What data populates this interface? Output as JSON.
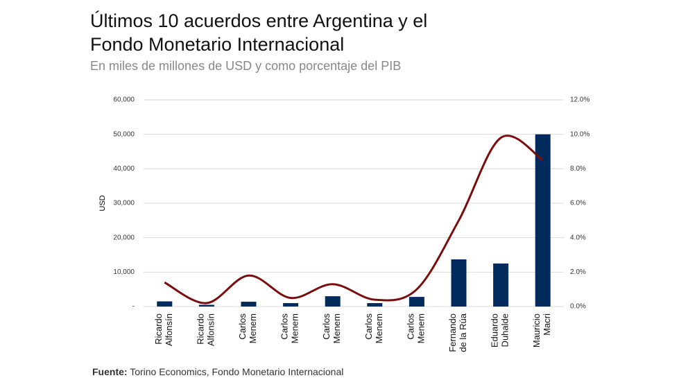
{
  "chart_data": {
    "type": "bar-line",
    "title": "Últimos 10 acuerdos entre Argentina y el Fondo Monetario Internacional",
    "subtitle": "En miles de millones de USD y como porcentaje del PIB",
    "y_label": "USD",
    "source_label": "Fuente:",
    "source": "Torino Economics, Fondo Monetario Internacional",
    "categories": [
      [
        "Ricardo",
        "Alfonsín"
      ],
      [
        "Ricardo",
        "Alfonsín"
      ],
      [
        "Carlos",
        "Menem"
      ],
      [
        "Carlos",
        "Menem"
      ],
      [
        "Carlos",
        "Menem"
      ],
      [
        "Carlos",
        "Menem"
      ],
      [
        "Carlos",
        "Menem"
      ],
      [
        "Fernando",
        "de la Rúa"
      ],
      [
        "Eduardo",
        "Duhalde"
      ],
      [
        "Mauricio",
        "Macri"
      ]
    ],
    "series": [
      {
        "type": "bar",
        "color": "#002b5c",
        "values": [
          1500,
          500,
          1400,
          1000,
          3000,
          1000,
          2800,
          13700,
          12500,
          50000
        ]
      },
      {
        "type": "line",
        "axis": "y2",
        "color": "#7b0c0c",
        "values": [
          1.4,
          0.2,
          1.8,
          0.5,
          1.3,
          0.4,
          1.0,
          5.0,
          9.8,
          8.5
        ]
      }
    ],
    "ylim": [
      0,
      60000
    ],
    "yticks": [
      {
        "value": 0,
        "label": "-"
      },
      {
        "value": 10000,
        "label": "10,000"
      },
      {
        "value": 20000,
        "label": "20,000"
      },
      {
        "value": 30000,
        "label": "30,000"
      },
      {
        "value": 40000,
        "label": "40,000"
      },
      {
        "value": 50000,
        "label": "50,000"
      },
      {
        "value": 60000,
        "label": "60,000"
      }
    ],
    "y2lim": [
      0,
      12
    ],
    "y2ticks": [
      {
        "value": 0,
        "label": "0.0%"
      },
      {
        "value": 2,
        "label": "2.0%"
      },
      {
        "value": 4,
        "label": "4.0%"
      },
      {
        "value": 6,
        "label": "6.0%"
      },
      {
        "value": 8,
        "label": "8.0%"
      },
      {
        "value": 10,
        "label": "10.0%"
      },
      {
        "value": 12,
        "label": "12.0%"
      }
    ],
    "grid": true
  }
}
